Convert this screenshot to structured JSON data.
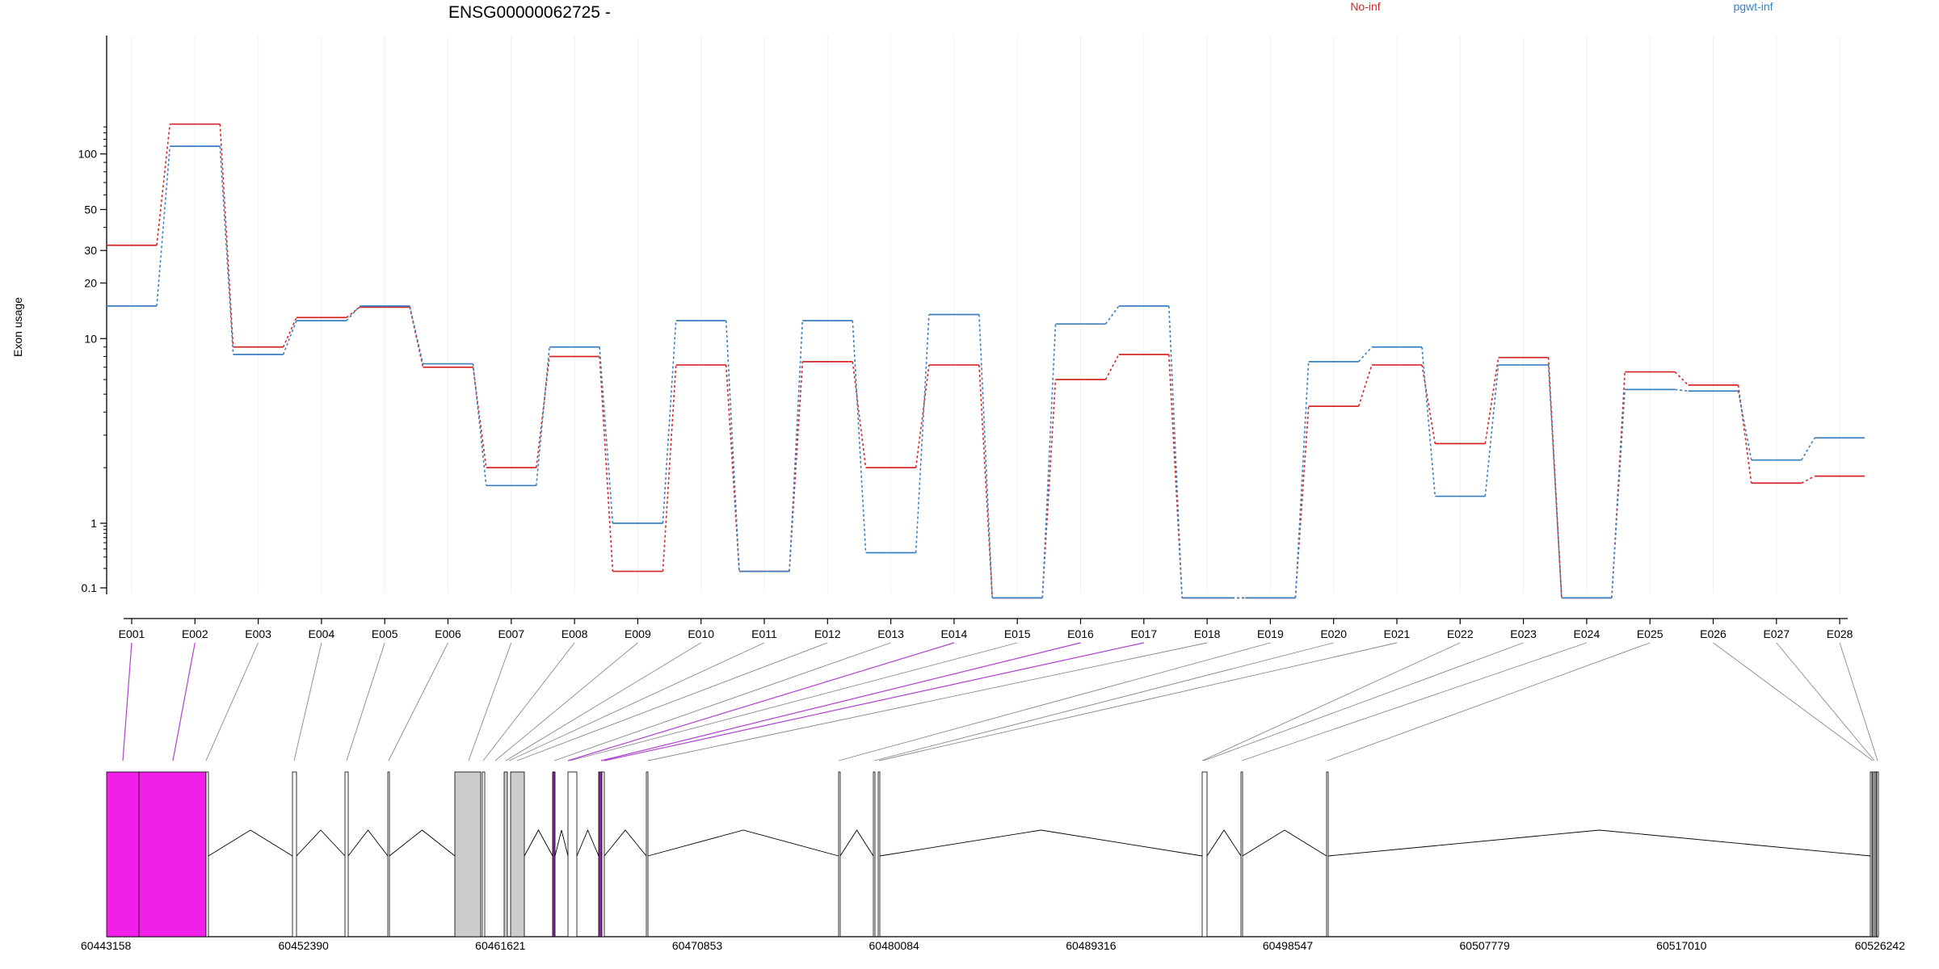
{
  "chart_data": {
    "type": "line",
    "title": "ENSG00000062725 -",
    "ylabel": "Exon usage",
    "y_scale": "log",
    "yticks": [
      "0.1",
      "1",
      "10",
      "20",
      "30",
      "50",
      "100"
    ],
    "categories": [
      "E001",
      "E002",
      "E003",
      "E004",
      "E005",
      "E006",
      "E007",
      "E008",
      "E009",
      "E010",
      "E011",
      "E012",
      "E013",
      "E014",
      "E015",
      "E016",
      "E017",
      "E018",
      "E019",
      "E020",
      "E021",
      "E022",
      "E023",
      "E024",
      "E025",
      "E026",
      "E027",
      "E028"
    ],
    "legend_position": "top",
    "series": [
      {
        "name": "No-inf",
        "color": "#d62728",
        "values": [
          32,
          145,
          9,
          13,
          14.8,
          7,
          2,
          8,
          0.18,
          7.2,
          0.18,
          7.5,
          2,
          7.2,
          0.07,
          6,
          8.2,
          0.07,
          0.07,
          4.3,
          7.2,
          2.7,
          7.9,
          0.07,
          6.6,
          5.6,
          1.65,
          1.8
        ]
      },
      {
        "name": "pgwt-inf",
        "color": "#3a7fc0",
        "values": [
          15,
          110,
          8.2,
          12.5,
          15,
          7.3,
          1.6,
          9,
          1,
          12.5,
          0.18,
          12.5,
          0.35,
          13.5,
          0.07,
          12,
          15,
          0.07,
          0.07,
          7.5,
          9,
          1.4,
          7.2,
          0.07,
          5.3,
          5.2,
          2.2,
          2.9
        ]
      }
    ],
    "gene_model": {
      "coordinates": [
        "60443158",
        "60452390",
        "60461621",
        "60470853",
        "60480084",
        "60489316",
        "60498547",
        "60507779",
        "60517010",
        "60526242"
      ],
      "highlight_color": "#f020e8",
      "other_color": "#cccccc",
      "exon_highlighted": [
        true,
        true,
        false,
        false,
        false,
        false,
        false,
        false,
        false,
        false,
        false,
        false,
        false,
        true,
        false,
        true,
        true,
        false,
        false,
        false,
        false,
        false,
        false,
        false,
        false,
        false,
        false,
        false
      ]
    }
  }
}
